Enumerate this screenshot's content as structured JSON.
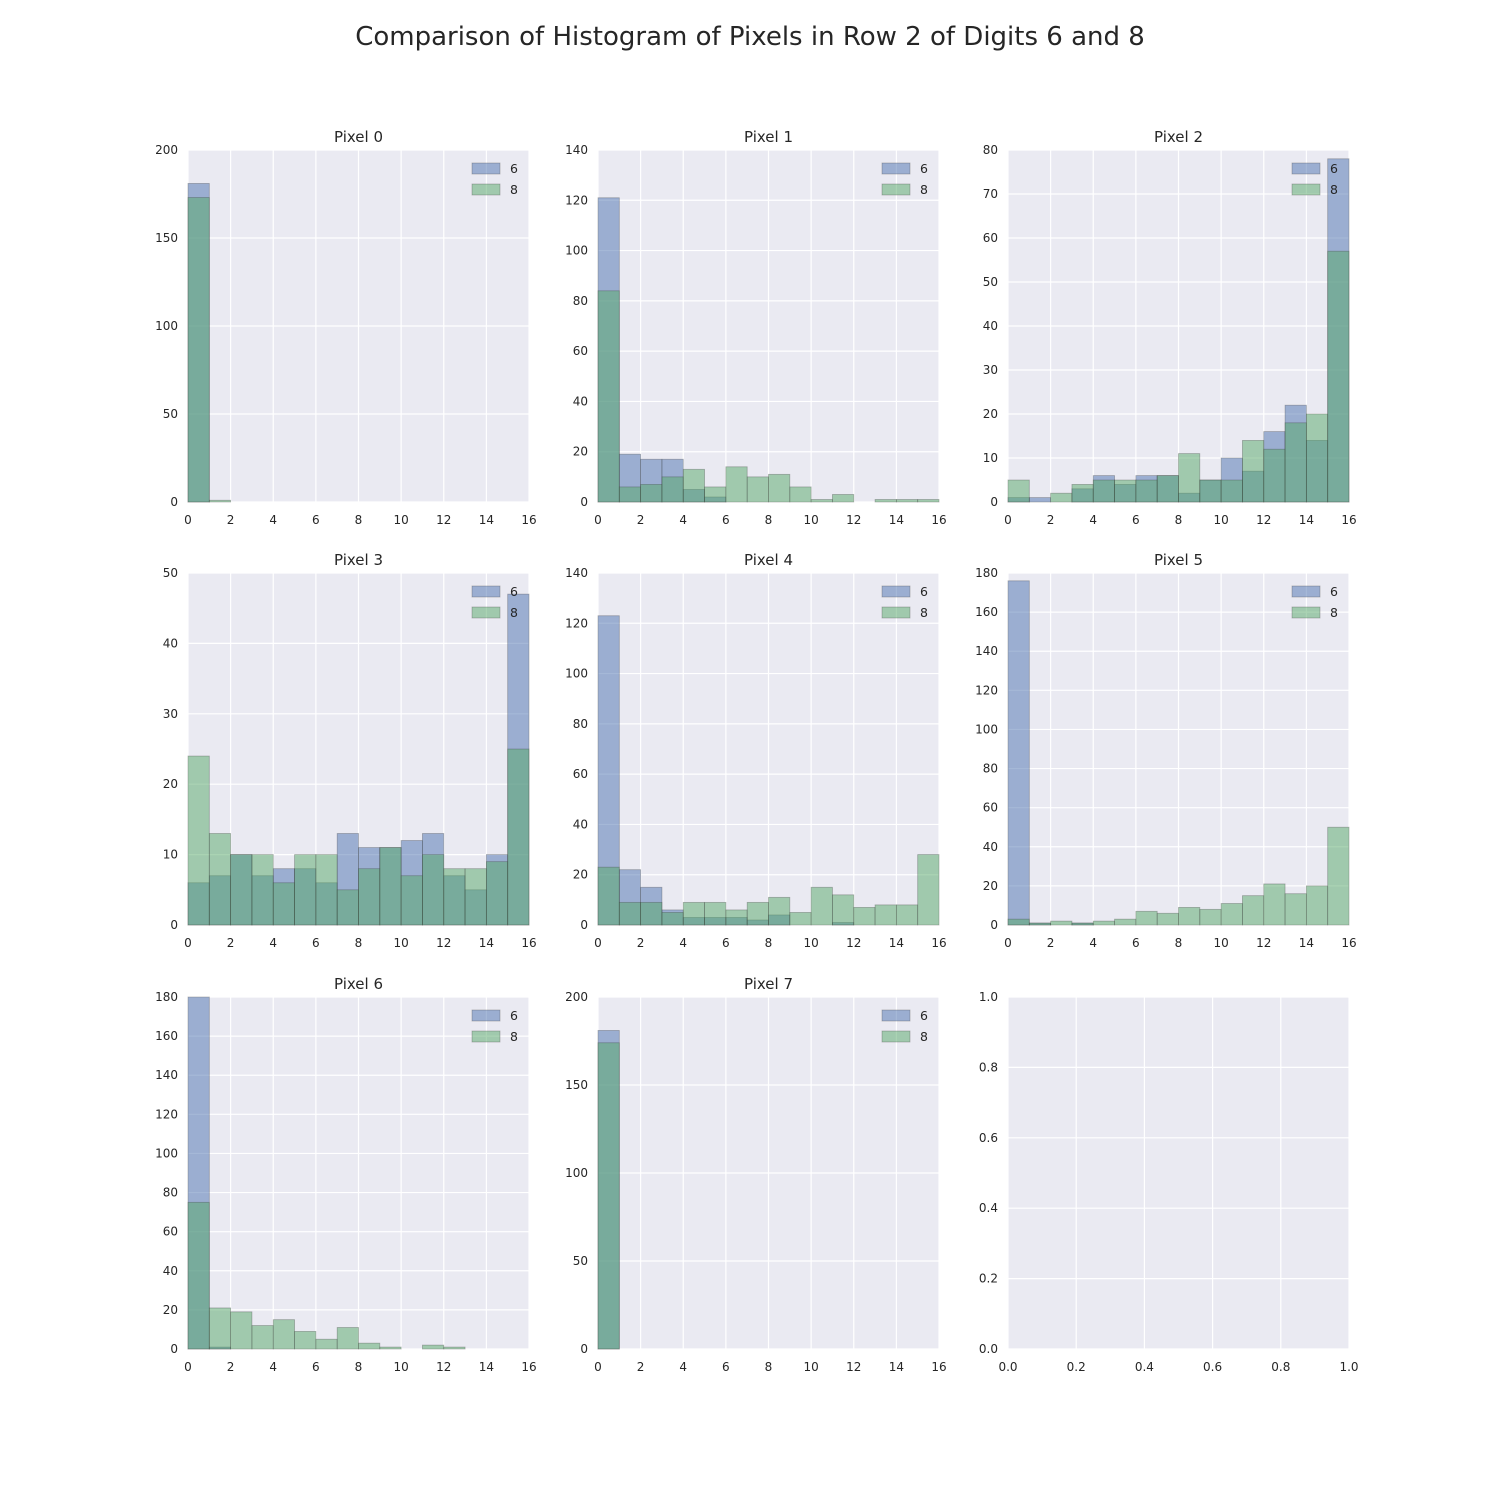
{
  "figure": {
    "title": "Comparison of Histogram of Pixels in Row 2 of Digits 6 and 8"
  },
  "colors": {
    "background": "#eaeaf2",
    "grid": "#ffffff",
    "series_6": "#4c72b0",
    "series_8": "#55a868",
    "bar_alpha": 0.5
  },
  "chart_data": [
    {
      "type": "bar",
      "title": "Pixel 0",
      "bin_edges": [
        0,
        1,
        2,
        3,
        4,
        5,
        6,
        7,
        8,
        9,
        10,
        11,
        12,
        13,
        14,
        15,
        16
      ],
      "xlim": [
        0,
        16
      ],
      "ylim": [
        0,
        200
      ],
      "xticks": [
        0,
        2,
        4,
        6,
        8,
        10,
        12,
        14,
        16
      ],
      "yticks": [
        0,
        50,
        100,
        150,
        200
      ],
      "legend": "top-right",
      "grid": true,
      "series": [
        {
          "name": "6",
          "values": [
            181,
            0,
            0,
            0,
            0,
            0,
            0,
            0,
            0,
            0,
            0,
            0,
            0,
            0,
            0,
            0
          ]
        },
        {
          "name": "8",
          "values": [
            173,
            1,
            0,
            0,
            0,
            0,
            0,
            0,
            0,
            0,
            0,
            0,
            0,
            0,
            0,
            0
          ]
        }
      ]
    },
    {
      "type": "bar",
      "title": "Pixel 1",
      "bin_edges": [
        0,
        1,
        2,
        3,
        4,
        5,
        6,
        7,
        8,
        9,
        10,
        11,
        12,
        13,
        14,
        15,
        16
      ],
      "xlim": [
        0,
        16
      ],
      "ylim": [
        0,
        140
      ],
      "xticks": [
        0,
        2,
        4,
        6,
        8,
        10,
        12,
        14,
        16
      ],
      "yticks": [
        0,
        20,
        40,
        60,
        80,
        100,
        120,
        140
      ],
      "legend": "top-right",
      "grid": true,
      "series": [
        {
          "name": "6",
          "values": [
            121,
            19,
            17,
            17,
            5,
            2,
            0,
            0,
            0,
            0,
            0,
            0,
            0,
            0,
            0,
            0
          ]
        },
        {
          "name": "8",
          "values": [
            84,
            6,
            7,
            10,
            13,
            6,
            14,
            10,
            11,
            6,
            1,
            3,
            0,
            1,
            1,
            1
          ]
        }
      ]
    },
    {
      "type": "bar",
      "title": "Pixel 2",
      "bin_edges": [
        0,
        1,
        2,
        3,
        4,
        5,
        6,
        7,
        8,
        9,
        10,
        11,
        12,
        13,
        14,
        15,
        16
      ],
      "xlim": [
        0,
        16
      ],
      "ylim": [
        0,
        80
      ],
      "xticks": [
        0,
        2,
        4,
        6,
        8,
        10,
        12,
        14,
        16
      ],
      "yticks": [
        0,
        10,
        20,
        30,
        40,
        50,
        60,
        70,
        80
      ],
      "legend": "top-right",
      "grid": true,
      "series": [
        {
          "name": "6",
          "values": [
            1,
            1,
            0,
            3,
            6,
            4,
            6,
            6,
            2,
            5,
            10,
            7,
            16,
            22,
            14,
            78
          ]
        },
        {
          "name": "8",
          "values": [
            5,
            0,
            2,
            4,
            5,
            5,
            5,
            6,
            11,
            5,
            5,
            14,
            12,
            18,
            20,
            57
          ]
        }
      ]
    },
    {
      "type": "bar",
      "title": "Pixel 3",
      "bin_edges": [
        0,
        1,
        2,
        3,
        4,
        5,
        6,
        7,
        8,
        9,
        10,
        11,
        12,
        13,
        14,
        15,
        16
      ],
      "xlim": [
        0,
        16
      ],
      "ylim": [
        0,
        50
      ],
      "xticks": [
        0,
        2,
        4,
        6,
        8,
        10,
        12,
        14,
        16
      ],
      "yticks": [
        0,
        10,
        20,
        30,
        40,
        50
      ],
      "legend": "top-right",
      "grid": true,
      "series": [
        {
          "name": "6",
          "values": [
            6,
            7,
            10,
            7,
            8,
            8,
            6,
            13,
            11,
            11,
            12,
            13,
            7,
            5,
            10,
            47
          ]
        },
        {
          "name": "8",
          "values": [
            24,
            13,
            10,
            10,
            6,
            10,
            10,
            5,
            8,
            11,
            7,
            10,
            8,
            8,
            9,
            25
          ]
        }
      ]
    },
    {
      "type": "bar",
      "title": "Pixel 4",
      "bin_edges": [
        0,
        1,
        2,
        3,
        4,
        5,
        6,
        7,
        8,
        9,
        10,
        11,
        12,
        13,
        14,
        15,
        16
      ],
      "xlim": [
        0,
        16
      ],
      "ylim": [
        0,
        140
      ],
      "xticks": [
        0,
        2,
        4,
        6,
        8,
        10,
        12,
        14,
        16
      ],
      "yticks": [
        0,
        20,
        40,
        60,
        80,
        100,
        120,
        140
      ],
      "legend": "top-right",
      "grid": true,
      "series": [
        {
          "name": "6",
          "values": [
            123,
            22,
            15,
            6,
            3,
            3,
            3,
            2,
            4,
            0,
            0,
            1,
            0,
            0,
            0,
            0
          ]
        },
        {
          "name": "8",
          "values": [
            23,
            9,
            9,
            5,
            9,
            9,
            6,
            9,
            11,
            5,
            15,
            12,
            7,
            8,
            8,
            28
          ]
        }
      ]
    },
    {
      "type": "bar",
      "title": "Pixel 5",
      "bin_edges": [
        0,
        1,
        2,
        3,
        4,
        5,
        6,
        7,
        8,
        9,
        10,
        11,
        12,
        13,
        14,
        15,
        16
      ],
      "xlim": [
        0,
        16
      ],
      "ylim": [
        0,
        180
      ],
      "xticks": [
        0,
        2,
        4,
        6,
        8,
        10,
        12,
        14,
        16
      ],
      "yticks": [
        0,
        20,
        40,
        60,
        80,
        100,
        120,
        140,
        160,
        180
      ],
      "legend": "top-right",
      "grid": true,
      "series": [
        {
          "name": "6",
          "values": [
            176,
            1,
            0,
            1,
            0,
            0,
            0,
            0,
            0,
            0,
            0,
            0,
            0,
            0,
            0,
            0
          ]
        },
        {
          "name": "8",
          "values": [
            3,
            1,
            2,
            1,
            2,
            3,
            7,
            6,
            9,
            8,
            11,
            15,
            21,
            16,
            20,
            50
          ]
        }
      ]
    },
    {
      "type": "bar",
      "title": "Pixel 6",
      "bin_edges": [
        0,
        1,
        2,
        3,
        4,
        5,
        6,
        7,
        8,
        9,
        10,
        11,
        12,
        13,
        14,
        15,
        16
      ],
      "xlim": [
        0,
        16
      ],
      "ylim": [
        0,
        180
      ],
      "xticks": [
        0,
        2,
        4,
        6,
        8,
        10,
        12,
        14,
        16
      ],
      "yticks": [
        0,
        20,
        40,
        60,
        80,
        100,
        120,
        140,
        160,
        180
      ],
      "legend": "top-right",
      "grid": true,
      "series": [
        {
          "name": "6",
          "values": [
            180,
            1,
            0,
            0,
            0,
            0,
            0,
            0,
            0,
            0,
            0,
            0,
            0,
            0,
            0,
            0
          ]
        },
        {
          "name": "8",
          "values": [
            75,
            21,
            19,
            12,
            15,
            9,
            5,
            11,
            3,
            1,
            0,
            2,
            1,
            0,
            0,
            0
          ]
        }
      ]
    },
    {
      "type": "bar",
      "title": "Pixel 7",
      "bin_edges": [
        0,
        1,
        2,
        3,
        4,
        5,
        6,
        7,
        8,
        9,
        10,
        11,
        12,
        13,
        14,
        15,
        16
      ],
      "xlim": [
        0,
        16
      ],
      "ylim": [
        0,
        200
      ],
      "xticks": [
        0,
        2,
        4,
        6,
        8,
        10,
        12,
        14,
        16
      ],
      "yticks": [
        0,
        50,
        100,
        150,
        200
      ],
      "legend": "top-right",
      "grid": true,
      "series": [
        {
          "name": "6",
          "values": [
            181,
            0,
            0,
            0,
            0,
            0,
            0,
            0,
            0,
            0,
            0,
            0,
            0,
            0,
            0,
            0
          ]
        },
        {
          "name": "8",
          "values": [
            174,
            0,
            0,
            0,
            0,
            0,
            0,
            0,
            0,
            0,
            0,
            0,
            0,
            0,
            0,
            0
          ]
        }
      ]
    },
    {
      "type": "empty",
      "title": "",
      "xlim": [
        0,
        1
      ],
      "ylim": [
        0,
        1
      ],
      "xticks": [
        "0.0",
        "0.2",
        "0.4",
        "0.6",
        "0.8",
        "1.0"
      ],
      "yticks": [
        "0.0",
        "0.2",
        "0.4",
        "0.6",
        "0.8",
        "1.0"
      ],
      "grid": true,
      "series": []
    }
  ]
}
